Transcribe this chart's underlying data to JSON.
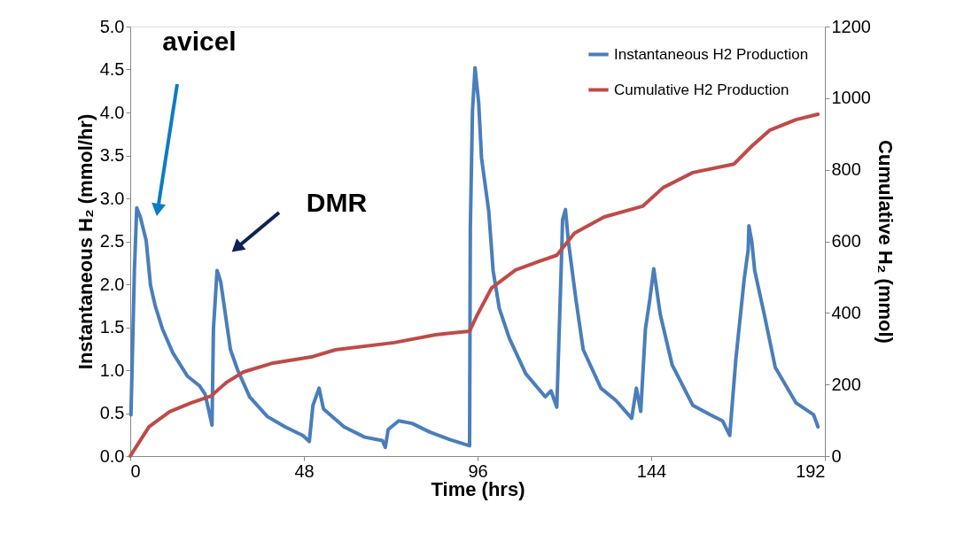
{
  "chart_data": {
    "type": "line",
    "xlabel": "Time (hrs)",
    "ylabel": "Instantaneous H₂  (mmol/hr)",
    "y2label": "Cumulative H₂ (mmol)",
    "xlim": [
      0,
      192
    ],
    "xticks": [
      0,
      48,
      96,
      144,
      192
    ],
    "ylim": [
      0,
      5
    ],
    "yticks": [
      {
        "value": 0,
        "label": "0.0"
      },
      0.5,
      {
        "value": 1,
        "label": "1.0"
      },
      1.5,
      {
        "value": 2,
        "label": "2.0"
      },
      2.5,
      {
        "value": 3,
        "label": "3.0"
      },
      3.5,
      {
        "value": 4,
        "label": "4.0"
      },
      4.5,
      {
        "value": 5,
        "label": "5.0"
      }
    ],
    "y2lim": [
      0,
      1200
    ],
    "y2ticks": [
      0,
      200,
      400,
      600,
      800,
      1000,
      1200
    ],
    "grid": false,
    "legend": "top right",
    "marker": "none",
    "line_style": "solid",
    "annotations": [
      "avicel",
      "DMR"
    ],
    "series": [
      {
        "name": "Instantaneous H2 Production",
        "color": "#4a7ebb",
        "x": [
          0.2,
          1.15,
          1.8,
          2.8,
          4.4,
          5.6,
          6.9,
          8.9,
          11.8,
          15.8,
          19.1,
          20.7,
          22.6,
          23,
          24,
          25,
          27.7,
          29.7,
          33,
          37.9,
          42.8,
          47.7,
          49.5,
          50.5,
          52.2,
          53.4,
          59.1,
          64.8,
          69.7,
          70.5,
          71.3,
          74.2,
          77.9,
          82.8,
          88.5,
          93.8,
          94,
          94.6,
          95.3,
          96.3,
          97.1,
          99.1,
          100.3,
          102,
          104.8,
          109.3,
          114.7,
          116.3,
          117.9,
          119.1,
          119.5,
          120.3,
          121.1,
          123.2,
          125.2,
          130.1,
          134.2,
          138.6,
          139.9,
          141.1,
          142.4,
          143.6,
          144.7,
          146.5,
          149.8,
          155.5,
          160.4,
          163.7,
          165.7,
          167.4,
          169.7,
          170.8,
          171,
          171.8,
          172.6,
          175.4,
          178.3,
          184,
          188.9,
          190.1
        ],
        "values": [
          0.48,
          2.16,
          2.89,
          2.78,
          2.51,
          1.99,
          1.75,
          1.48,
          1.2,
          0.93,
          0.82,
          0.72,
          0.36,
          1.48,
          2.16,
          2.03,
          1.24,
          1.0,
          0.69,
          0.46,
          0.34,
          0.24,
          0.17,
          0.59,
          0.79,
          0.55,
          0.34,
          0.22,
          0.18,
          0.1,
          0.31,
          0.41,
          0.38,
          0.28,
          0.19,
          0.12,
          2.65,
          4.02,
          4.52,
          4.12,
          3.47,
          2.85,
          2.16,
          1.72,
          1.37,
          0.96,
          0.69,
          0.76,
          0.57,
          2.16,
          2.75,
          2.87,
          2.5,
          1.82,
          1.24,
          0.79,
          0.65,
          0.44,
          0.79,
          0.52,
          1.48,
          1.82,
          2.18,
          1.65,
          1.06,
          0.59,
          0.48,
          0.41,
          0.24,
          1.13,
          2.06,
          2.4,
          2.68,
          2.5,
          2.16,
          1.62,
          1.03,
          0.62,
          0.48,
          0.34
        ]
      },
      {
        "name": "Cumulative H2 Production",
        "color": "#be4b48",
        "axis": "y2",
        "x": [
          0,
          5.2,
          10.9,
          16.7,
          22.4,
          26.5,
          31.3,
          39.5,
          50.1,
          56.7,
          73,
          84.4,
          93.8,
          96,
          99.9,
          106.5,
          113,
          117.9,
          122.8,
          131,
          141.6,
          147.3,
          155.5,
          166.9,
          171.8,
          176.7,
          184,
          190.1
        ],
        "values": [
          0,
          82,
          124,
          148,
          168,
          205,
          235,
          260,
          277,
          297,
          317,
          339,
          349,
          396,
          470,
          520,
          544,
          561,
          623,
          668,
          698,
          750,
          792,
          816,
          866,
          910,
          940,
          955
        ]
      }
    ]
  }
}
